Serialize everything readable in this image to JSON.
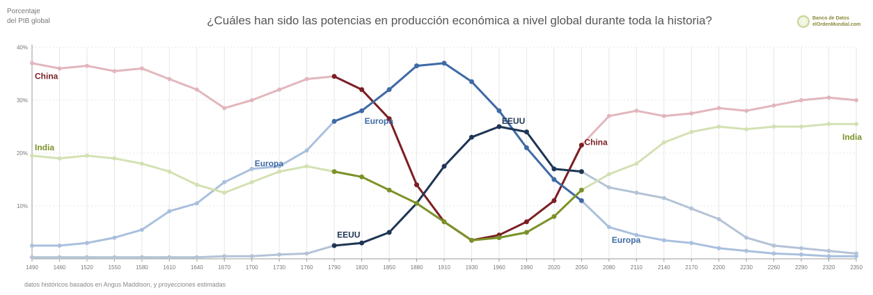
{
  "title": "¿Cuáles han sido las potencias en producción económica a nivel global durante toda la historia?",
  "ylabel_line1": "Porcentaje",
  "ylabel_line2": "del PIB global",
  "source_note": "datos históricos basados en Angus Maddison, y proyecciones estimadas",
  "logo": {
    "line1": "Banco de Datos",
    "line2": "elOrdenMundial.com",
    "icon": "globe-logo-icon"
  },
  "colors": {
    "china_light": "#e2b6bc",
    "china_dark": "#7b1f24",
    "europa_light": "#a9c0de",
    "europa_dark": "#3f6aa5",
    "eeuu_light": "#b4c3d6",
    "eeuu_dark": "#1f3554",
    "india_light": "#d3e1b3",
    "india_dark": "#7b9228",
    "grid": "#e6e6e6",
    "axis": "#999999"
  },
  "chart_data": {
    "type": "line",
    "x": [
      1490,
      1460,
      1520,
      1550,
      1580,
      1610,
      1640,
      1670,
      1700,
      1730,
      1760,
      1790,
      1820,
      1850,
      1880,
      1910,
      1930,
      1960,
      1990,
      2020,
      2050,
      2080,
      2110,
      2140,
      2170,
      2200,
      2230,
      2260,
      2290,
      2320,
      2350
    ],
    "x_tick_labels": [
      "1490",
      "1460",
      "1520",
      "1550",
      "1580",
      "1610",
      "1640",
      "1670",
      "1700",
      "1730",
      "1760",
      "1790",
      "1820",
      "1850",
      "1880",
      "1910",
      "1930",
      "1960",
      "1990",
      "2020",
      "2050",
      "2080",
      "2110",
      "2140",
      "2170",
      "2200",
      "2230",
      "2260",
      "2290",
      "2320",
      "2350"
    ],
    "y_tick_labels": [
      "40%",
      "30%",
      "20%",
      "10%"
    ],
    "y_ticks": [
      40,
      30,
      20,
      10
    ],
    "ylim": [
      0,
      40
    ],
    "grid": true,
    "dark_index_range": [
      11,
      20
    ],
    "series": [
      {
        "name": "China",
        "light_color": "#e2b6bc",
        "dark_color": "#7b1f24",
        "values": [
          37,
          36,
          36.5,
          35.5,
          36,
          34,
          32,
          28.5,
          30,
          32,
          34,
          34.5,
          32,
          26.5,
          14,
          7,
          3.5,
          4.5,
          7,
          11,
          21.5,
          27,
          28,
          27,
          27.5,
          28.5,
          28,
          29,
          30,
          30.5,
          30
        ]
      },
      {
        "name": "Europa",
        "light_color": "#a9c0de",
        "dark_color": "#3f6aa5",
        "values": [
          2.5,
          2.5,
          3,
          4,
          5.5,
          9,
          10.5,
          14.5,
          17,
          17.5,
          20.5,
          26,
          28,
          32,
          36.5,
          37,
          33.5,
          28,
          21,
          15,
          11,
          6,
          4.5,
          3.5,
          3,
          2,
          1.5,
          1,
          0.8,
          0.5,
          0.5
        ]
      },
      {
        "name": "EEUU",
        "light_color": "#b4c3d6",
        "dark_color": "#1f3554",
        "values": [
          0.3,
          0.3,
          0.3,
          0.3,
          0.3,
          0.3,
          0.3,
          0.5,
          0.5,
          0.8,
          1,
          2.5,
          3,
          5,
          10.5,
          17.5,
          23,
          25,
          24,
          17,
          16.5,
          13.5,
          12.5,
          11.5,
          9.5,
          7.5,
          4,
          2.5,
          2,
          1.5,
          1
        ]
      },
      {
        "name": "India",
        "light_color": "#d3e1b3",
        "dark_color": "#7b9228",
        "values": [
          19.5,
          19,
          19.5,
          19,
          18,
          16.5,
          14,
          12.5,
          14.5,
          16.5,
          17.5,
          16.5,
          15.5,
          13,
          10.5,
          7,
          3.5,
          4,
          5,
          8,
          13,
          16,
          18,
          22,
          24,
          25,
          24.5,
          25,
          25,
          25.5,
          25.5
        ]
      }
    ],
    "annotations": [
      {
        "text": "China",
        "series": "China",
        "x": 1490,
        "y": 34
      },
      {
        "text": "Europa",
        "series": "Europa",
        "x": 1820,
        "y": 25.5
      },
      {
        "text": "EEUU",
        "series": "EEUU",
        "x": 1960,
        "y": 25.5
      },
      {
        "text": "China",
        "series": "China",
        "x": 2050,
        "y": 21.5
      },
      {
        "text": "India",
        "series": "India",
        "x": 1490,
        "y": 20.5
      },
      {
        "text": "Europa",
        "series": "Europa",
        "x": 1700,
        "y": 17.5
      },
      {
        "text": "India",
        "series": "India",
        "x": 2350,
        "y": 22.5
      },
      {
        "text": "EEUU",
        "series": "EEUU",
        "x": 1790,
        "y": 4
      },
      {
        "text": "Europa",
        "series": "Europa",
        "x": 2080,
        "y": 3
      }
    ]
  }
}
